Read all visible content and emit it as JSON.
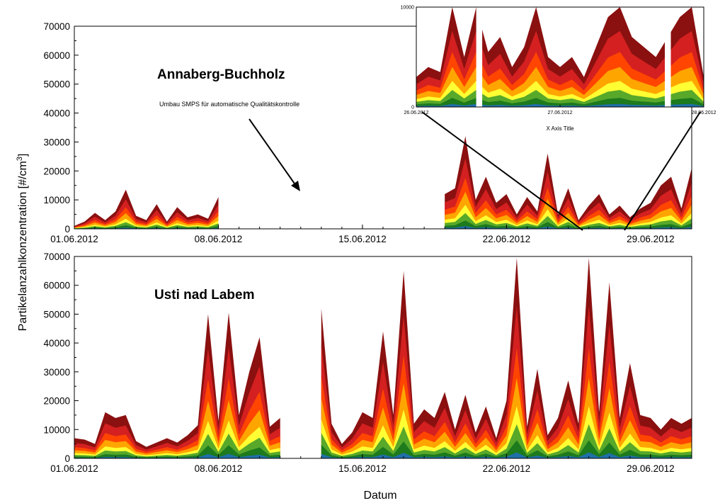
{
  "chart_data": [
    {
      "type": "area",
      "title": "Annaberg-Buchholz",
      "annotation": "Umbau SMPS für automatische Qualitätskontrolle",
      "ylabel": "Partikelanzahlkonzentration [#/cm³]",
      "ylabel_parts": {
        "main": "Partikelanzahlkonzentration [#/cm",
        "sup": "3",
        "end": "]"
      },
      "xlim": [
        "2012-06-01",
        "2012-07-01"
      ],
      "ylim": [
        0,
        70000
      ],
      "x_ticks": [
        "01.06.2012",
        "08.06.2012",
        "15.06.2012",
        "22.06.2012",
        "29.06.2012"
      ],
      "y_ticks": [
        "0",
        "10000",
        "20000",
        "30000",
        "40000",
        "50000",
        "60000",
        "70000"
      ],
      "stacked": true,
      "layer_colors": [
        "#1f6fa8",
        "#1d7a1d",
        "#58a82a",
        "#ffff33",
        "#ffa500",
        "#ff4500",
        "#d42020",
        "#8b1010"
      ],
      "segments": [
        {
          "start": "2012-06-01",
          "end": "2012-06-08",
          "x": [
            "2012-06-01",
            "2012-06-01T12:00",
            "2012-06-02",
            "2012-06-02T12:00",
            "2012-06-03",
            "2012-06-03T12:00",
            "2012-06-04",
            "2012-06-04T12:00",
            "2012-06-05",
            "2012-06-05T12:00",
            "2012-06-06",
            "2012-06-06T12:00",
            "2012-06-07",
            "2012-06-07T12:00",
            "2012-06-08"
          ],
          "total": [
            1000,
            2500,
            5500,
            3000,
            6000,
            13500,
            4500,
            3000,
            8500,
            2500,
            7500,
            4000,
            5000,
            3500,
            11000
          ]
        },
        {
          "start": "2012-06-19",
          "end": "2012-07-01",
          "x": [
            "2012-06-19",
            "2012-06-19T12:00",
            "2012-06-20",
            "2012-06-20T12:00",
            "2012-06-21",
            "2012-06-21T12:00",
            "2012-06-22",
            "2012-06-22T12:00",
            "2012-06-23",
            "2012-06-23T12:00",
            "2012-06-24",
            "2012-06-24T12:00",
            "2012-06-25",
            "2012-06-25T12:00",
            "2012-06-26",
            "2012-06-26T12:00",
            "2012-06-27",
            "2012-06-27T12:00",
            "2012-06-28",
            "2012-06-28T12:00",
            "2012-06-29",
            "2012-06-29T12:00",
            "2012-06-30",
            "2012-06-30T12:00",
            "2012-07-01"
          ],
          "total": [
            12000,
            14000,
            32000,
            10000,
            18000,
            9000,
            12000,
            5000,
            11000,
            6000,
            26000,
            5000,
            14000,
            3000,
            8000,
            12000,
            5000,
            8000,
            4000,
            7000,
            9000,
            15000,
            18000,
            7000,
            21000
          ]
        }
      ]
    },
    {
      "type": "area",
      "title": "Usti nad Labem",
      "xlabel": "Datum",
      "xlim": [
        "2012-06-01",
        "2012-07-01"
      ],
      "ylim": [
        0,
        70000
      ],
      "x_ticks": [
        "01.06.2012",
        "08.06.2012",
        "15.06.2012",
        "22.06.2012",
        "29.06.2012"
      ],
      "y_ticks": [
        "0",
        "10000",
        "20000",
        "30000",
        "40000",
        "50000",
        "60000",
        "70000"
      ],
      "stacked": true,
      "segments": [
        {
          "start": "2012-06-01",
          "end": "2012-06-11",
          "x": [
            "2012-06-01",
            "2012-06-01T12:00",
            "2012-06-02",
            "2012-06-02T12:00",
            "2012-06-03",
            "2012-06-03T12:00",
            "2012-06-04",
            "2012-06-04T12:00",
            "2012-06-05",
            "2012-06-05T12:00",
            "2012-06-06",
            "2012-06-06T12:00",
            "2012-06-07",
            "2012-06-07T12:00",
            "2012-06-08",
            "2012-06-08T12:00",
            "2012-06-09",
            "2012-06-09T12:00",
            "2012-06-10",
            "2012-06-10T12:00",
            "2012-06-11"
          ],
          "total": [
            7000,
            6500,
            5000,
            16000,
            14000,
            15000,
            6000,
            4000,
            5500,
            7000,
            5500,
            8000,
            11500,
            50000,
            13000,
            50500,
            15000,
            30000,
            42000,
            11000,
            14000
          ]
        },
        {
          "start": "2012-06-13",
          "end": "2012-07-01",
          "x": [
            "2012-06-13",
            "2012-06-13T12:00",
            "2012-06-14",
            "2012-06-14T12:00",
            "2012-06-15",
            "2012-06-15T12:00",
            "2012-06-16",
            "2012-06-16T12:00",
            "2012-06-17",
            "2012-06-17T12:00",
            "2012-06-18",
            "2012-06-18T12:00",
            "2012-06-19",
            "2012-06-19T12:00",
            "2012-06-20",
            "2012-06-20T12:00",
            "2012-06-21",
            "2012-06-21T12:00",
            "2012-06-22",
            "2012-06-22T12:00",
            "2012-06-23",
            "2012-06-23T12:00",
            "2012-06-24",
            "2012-06-24T12:00",
            "2012-06-25",
            "2012-06-25T12:00",
            "2012-06-26",
            "2012-06-26T12:00",
            "2012-06-27",
            "2012-06-27T12:00",
            "2012-06-28",
            "2012-06-28T12:00",
            "2012-06-29",
            "2012-06-29T12:00",
            "2012-06-30",
            "2012-06-30T12:00",
            "2012-07-01"
          ],
          "total": [
            52000,
            12000,
            5000,
            9000,
            16000,
            14000,
            44000,
            15000,
            65000,
            12000,
            17000,
            14000,
            23000,
            10000,
            22000,
            9000,
            18000,
            7000,
            20000,
            69500,
            11000,
            31000,
            8000,
            14000,
            27000,
            12000,
            69500,
            16000,
            61000,
            14000,
            33000,
            15000,
            14000,
            10000,
            14000,
            12000,
            14000
          ]
        }
      ]
    },
    {
      "type": "area",
      "role": "inset",
      "xlabel": "X Axis Title",
      "xlim": [
        "2012-06-26",
        "2012-06-28"
      ],
      "ylim": [
        0,
        10000
      ],
      "x_ticks": [
        "26.06.2012",
        "27.06.2012",
        "28.06.2012"
      ],
      "y_ticks": [
        "0",
        "10000"
      ],
      "stacked": true,
      "gaps": [
        [
          "2012-06-26T10:00",
          "2012-06-26T11:00"
        ],
        [
          "2012-06-27T17:30",
          "2012-06-27T18:30"
        ]
      ],
      "x": [
        "2012-06-26",
        "2012-06-26T02:00",
        "2012-06-26T04:00",
        "2012-06-26T06:00",
        "2012-06-26T08:00",
        "2012-06-26T10:00",
        "2012-06-26T12:00",
        "2012-06-26T14:00",
        "2012-06-26T16:00",
        "2012-06-26T18:00",
        "2012-06-26T20:00",
        "2012-06-26T22:00",
        "2012-06-27",
        "2012-06-27T02:00",
        "2012-06-27T04:00",
        "2012-06-27T06:00",
        "2012-06-27T08:00",
        "2012-06-27T10:00",
        "2012-06-27T12:00",
        "2012-06-27T14:00",
        "2012-06-27T16:00",
        "2012-06-27T18:00",
        "2012-06-27T20:00",
        "2012-06-27T22:00",
        "2012-06-28"
      ],
      "total": [
        3000,
        4000,
        3500,
        10000,
        5000,
        10000,
        5500,
        7000,
        4000,
        6000,
        10000,
        5000,
        4000,
        5000,
        3000,
        6000,
        9000,
        10000,
        7000,
        6000,
        5000,
        7000,
        9000,
        10000,
        3000
      ]
    }
  ]
}
